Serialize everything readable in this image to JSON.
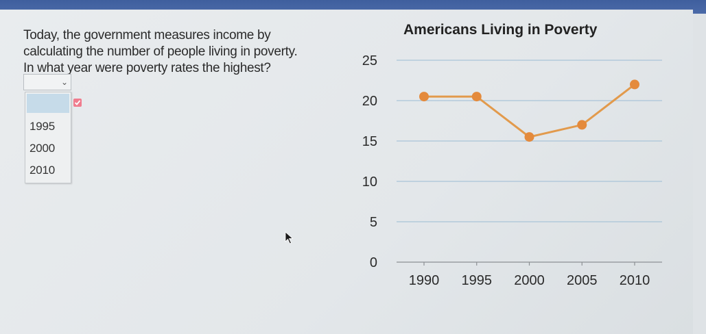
{
  "question": {
    "lines": [
      "Today, the government measures income by",
      "calculating the number of people living in poverty.",
      "In what year were poverty rates the highest?"
    ]
  },
  "dropdown": {
    "selected": "",
    "options": [
      "1995",
      "2000",
      "2010"
    ]
  },
  "colors": {
    "series": "#e48a3c",
    "gridline": "#a9c4d8",
    "top_bar": "#4b6aa8",
    "highlight": "#c6dbe9"
  },
  "chart_data": {
    "type": "line",
    "title": "Americans Living in Poverty",
    "x": [
      1990,
      1995,
      2000,
      2005,
      2010
    ],
    "y": [
      20.5,
      20.5,
      15.5,
      17,
      22
    ],
    "x_ticks": [
      "1990",
      "1995",
      "2000",
      "2005",
      "2010"
    ],
    "y_ticks": [
      0,
      5,
      10,
      15,
      20,
      25
    ],
    "ylim": [
      0,
      25
    ],
    "xlabel": "",
    "ylabel": "",
    "grid": true,
    "legend": "none"
  }
}
